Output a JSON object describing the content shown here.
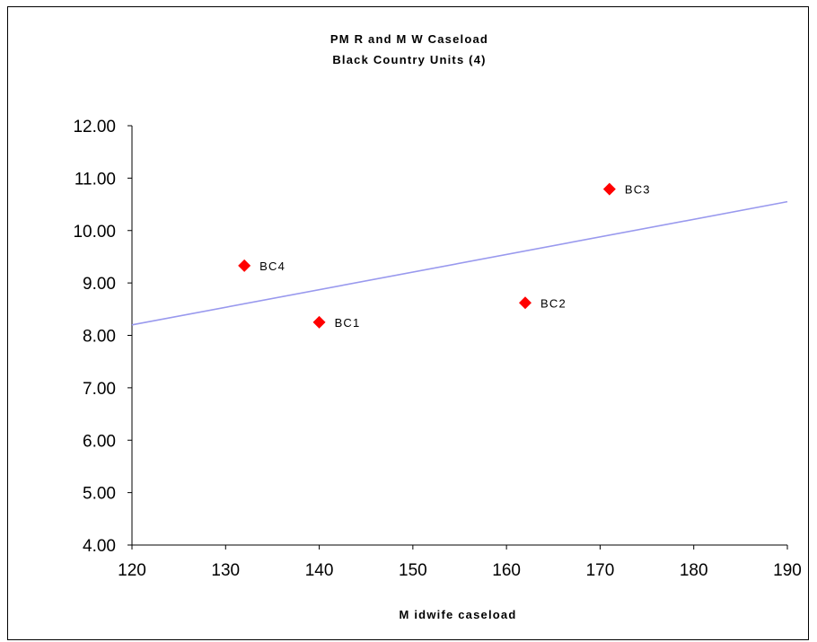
{
  "chart_data": {
    "type": "scatter",
    "title": "PM R and M W Caseload",
    "subtitle": "Black Country Units (4)",
    "xlabel": "M idwife caseload",
    "ylabel": "",
    "xlim": [
      120,
      190
    ],
    "ylim": [
      4.0,
      12.0
    ],
    "x_ticks": [
      "120",
      "130",
      "140",
      "150",
      "160",
      "170",
      "180",
      "190"
    ],
    "y_ticks": [
      "4.00",
      "5.00",
      "6.00",
      "7.00",
      "8.00",
      "9.00",
      "10.00",
      "11.00",
      "12.00"
    ],
    "grid": false,
    "legend": false,
    "marker_color": "#ff0000",
    "trendline_color": "#9999ee",
    "points": [
      {
        "label": "BC1",
        "x": 140,
        "y": 8.25
      },
      {
        "label": "BC2",
        "x": 162,
        "y": 8.62
      },
      {
        "label": "BC3",
        "x": 171,
        "y": 10.79
      },
      {
        "label": "BC4",
        "x": 132,
        "y": 9.33
      }
    ],
    "trendline": {
      "x": [
        120,
        190
      ],
      "y": [
        8.2,
        10.55
      ]
    }
  }
}
